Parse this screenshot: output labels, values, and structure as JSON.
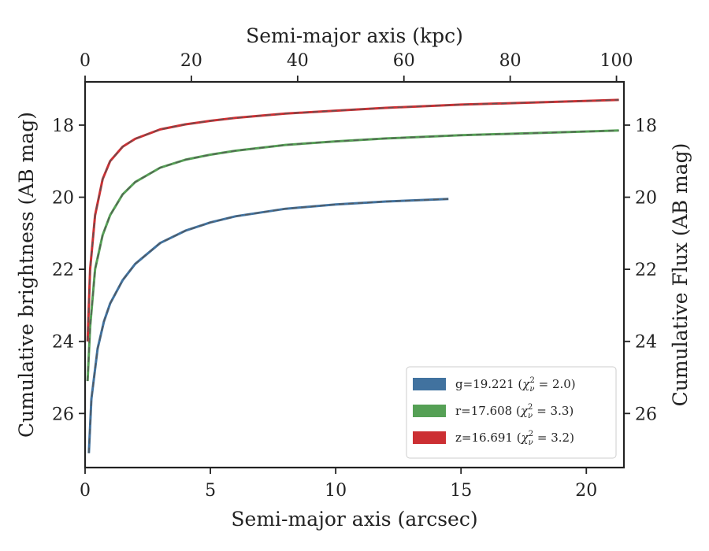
{
  "chart_data": {
    "type": "line",
    "xlabel": "Semi-major axis (arcsec)",
    "ylabel": "Cumulative brightness (AB mag)",
    "x2label": "Semi-major axis (kpc)",
    "y2label": "Cumulative Flux (AB mag)",
    "xlim": [
      0,
      21.5
    ],
    "ylim": [
      27.5,
      16.8
    ],
    "x2lim": [
      0,
      101.4
    ],
    "y_inverted": true,
    "xticks": [
      "0",
      "5",
      "10",
      "15",
      "20"
    ],
    "yticks": [
      "18",
      "20",
      "22",
      "24",
      "26"
    ],
    "x2ticks": [
      "0",
      "20",
      "40",
      "60",
      "80",
      "100"
    ],
    "legend_position": "lower right",
    "grid": false,
    "series": [
      {
        "name": "g=19.221 (χ²_ν = 2.0)",
        "band": "g",
        "mag_label": "g=19.221",
        "chi_value": "2.0",
        "color": "#41729f",
        "x": [
          0.15,
          0.25,
          0.5,
          0.75,
          1.0,
          1.5,
          2.0,
          3.0,
          4.0,
          5.0,
          6.0,
          8.0,
          10.0,
          12.0,
          14.5
        ],
        "y": [
          27.1,
          25.6,
          24.2,
          23.45,
          22.95,
          22.3,
          21.85,
          21.27,
          20.93,
          20.7,
          20.53,
          20.32,
          20.2,
          20.12,
          20.05
        ]
      },
      {
        "name": "r=17.608 (χ²_ν = 3.3)",
        "band": "r",
        "mag_label": "r=17.608",
        "chi_value": "3.3",
        "color": "#55a055",
        "x": [
          0.1,
          0.2,
          0.4,
          0.7,
          1.0,
          1.5,
          2.0,
          3.0,
          4.0,
          5.0,
          6.0,
          8.0,
          10.0,
          12.0,
          15.0,
          18.0,
          21.3
        ],
        "y": [
          25.1,
          23.6,
          22.0,
          21.05,
          20.5,
          19.92,
          19.58,
          19.18,
          18.96,
          18.82,
          18.71,
          18.55,
          18.45,
          18.37,
          18.28,
          18.22,
          18.15
        ]
      },
      {
        "name": "z=16.691 (χ²_ν = 3.2)",
        "band": "z",
        "mag_label": "z=16.691",
        "chi_value": "3.2",
        "color": "#cc2f33",
        "x": [
          0.1,
          0.2,
          0.4,
          0.7,
          1.0,
          1.5,
          2.0,
          3.0,
          4.0,
          5.0,
          6.0,
          8.0,
          10.0,
          12.0,
          15.0,
          18.0,
          21.3
        ],
        "y": [
          24.0,
          22.0,
          20.5,
          19.5,
          19.0,
          18.6,
          18.38,
          18.12,
          17.98,
          17.88,
          17.8,
          17.68,
          17.6,
          17.52,
          17.43,
          17.37,
          17.3
        ]
      }
    ]
  }
}
